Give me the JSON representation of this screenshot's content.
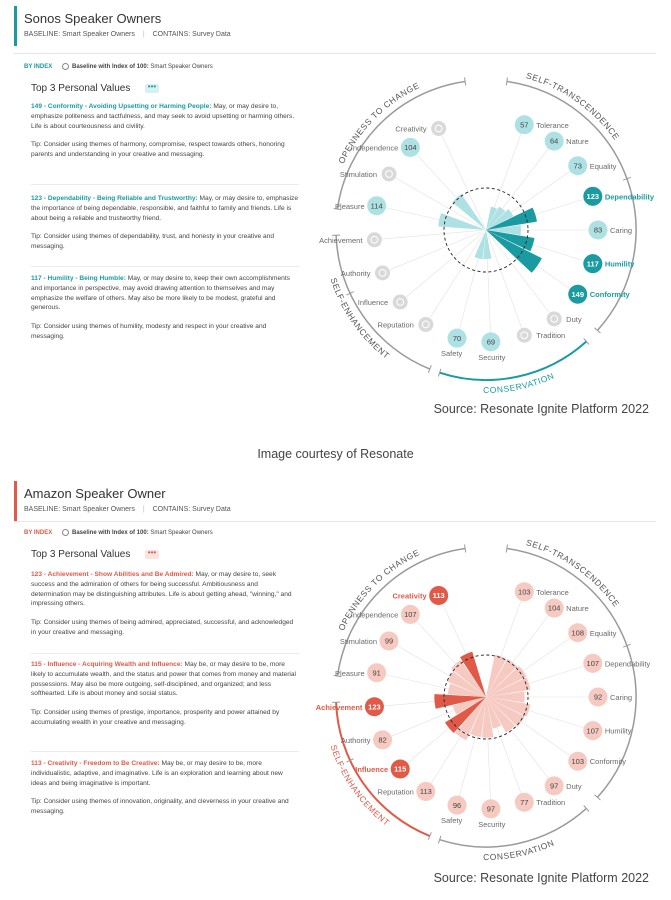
{
  "panels": [
    {
      "title": "Sonos Speaker Owners",
      "baseline_meta": "BASELINE: Smart Speaker Owners",
      "contains_meta": "CONTAINS: Survey Data",
      "by_index": "BY INDEX",
      "baseline_toggle_bold": "Baseline with Index of 100:",
      "baseline_toggle_text": "Smart Speaker Owners",
      "top3_title": "Top 3 Personal Values",
      "more_glyph": "•••",
      "accent": "#1a9ba1",
      "light": "#aee1e3",
      "values": [
        {
          "heading": "149 - Conformity - Avoiding Upsetting or Harming People:",
          "body": " May, or may desire to, emphasize politeness and tactfulness, and may seek to avoid upsetting or harming others. Life is about courteousness and civility.",
          "tip": "Tip: Consider using themes of harmony, compromise, respect towards others, honoring parents and understanding in your creative and messaging."
        },
        {
          "heading": "123 - Dependability - Being Reliable and Trustworthy:",
          "body": " May, or may desire to, emphasize the importance of being dependable, responsible, and faithful to family and friends. Life is about being a reliable and trustworthy friend.",
          "tip": "Tip: Consider using themes of dependability, trust, and honesty in your creative and messaging."
        },
        {
          "heading": "117 - Humility - Being Humble:",
          "body": " May, or may desire to, keep their own accomplishments and importance in perspective, may avoid drawing attention to themselves and may emphasize the welfare of others. May also be more likely to be modest, grateful and generous.",
          "tip": "Tip: Consider using themes of humility, modesty and respect in your creative and messaging."
        }
      ],
      "source": "Source: Resonate Ignite Platform 2022",
      "chart_data": {
        "type": "radial-bar",
        "baseline": 100,
        "quadrants": [
          "OPENNESS TO CHANGE",
          "SELF-TRANSCENDENCE",
          "CONSERVATION",
          "SELF-ENHANCEMENT"
        ],
        "highlighted_quadrant": "CONSERVATION",
        "items": [
          {
            "name": "Tolerance",
            "value": 57,
            "shown": true
          },
          {
            "name": "Nature",
            "value": 64,
            "shown": true
          },
          {
            "name": "Equality",
            "value": 73,
            "shown": true
          },
          {
            "name": "Dependability",
            "value": 123,
            "shown": true,
            "top": true
          },
          {
            "name": "Caring",
            "value": 83,
            "shown": true
          },
          {
            "name": "Humility",
            "value": 117,
            "shown": true,
            "top": true
          },
          {
            "name": "Conformity",
            "value": 149,
            "shown": true,
            "top": true
          },
          {
            "name": "Duty",
            "value": 35,
            "shown": false
          },
          {
            "name": "Tradition",
            "value": 35,
            "shown": false
          },
          {
            "name": "Security",
            "value": 69,
            "shown": true
          },
          {
            "name": "Safety",
            "value": 70,
            "shown": true
          },
          {
            "name": "Reputation",
            "value": 35,
            "shown": false
          },
          {
            "name": "Influence",
            "value": 35,
            "shown": false
          },
          {
            "name": "Authority",
            "value": 35,
            "shown": false
          },
          {
            "name": "Achievement",
            "value": 35,
            "shown": false
          },
          {
            "name": "Pleasure",
            "value": 114,
            "shown": true
          },
          {
            "name": "Stimulation",
            "value": 35,
            "shown": false
          },
          {
            "name": "Independence",
            "value": 104,
            "shown": true
          },
          {
            "name": "Creativity",
            "value": 35,
            "shown": false
          }
        ]
      }
    },
    {
      "title": "Amazon Speaker Owner",
      "baseline_meta": "BASELINE: Smart Speaker Owners",
      "contains_meta": "CONTAINS: Survey Data",
      "by_index": "BY INDEX",
      "baseline_toggle_bold": "Baseline with Index of 100:",
      "baseline_toggle_text": "Smart Speaker Owners",
      "top3_title": "Top 3 Personal Values",
      "more_glyph": "•••",
      "accent": "#e05a47",
      "light": "#f6c9c1",
      "values": [
        {
          "heading": "123 - Achievement - Show Abilities and Be Admired:",
          "body": " May, or may desire to, seek success and the admiration of others for being successful. Ambitiousness and determination may be distinguishing attributes. Life is about getting ahead, \"winning,\" and impressing others.",
          "tip": "Tip: Consider using themes of being admired, appreciated, successful, and acknowledged in your creative and messaging."
        },
        {
          "heading": "115 - Influence - Acquiring Wealth and Influence:",
          "body": " May be, or may desire to be, more likely to accumulate wealth, and the status and power that comes from money and material possessions. May also be more outgoing, self-disciplined, and organized; and less softhearted. Life is about money and social status.",
          "tip": "Tip: Consider using themes of prestige, importance, prosperity and power attained by accumulating wealth in your creative and messaging."
        },
        {
          "heading": "113 - Creativity - Freedom to Be Creative:",
          "body": " May be, or may desire to be, more individualistic, adaptive, and imaginative. Life is an exploration and learning about new ideas and being imaginative is important.",
          "tip": "Tip: Consider using themes of innovation, originality, and cleverness in your creative and messaging."
        }
      ],
      "source": "Source: Resonate Ignite Platform 2022",
      "chart_data": {
        "type": "radial-bar",
        "baseline": 100,
        "quadrants": [
          "OPENNESS TO CHANGE",
          "SELF-TRANSCENDENCE",
          "CONSERVATION",
          "SELF-ENHANCEMENT"
        ],
        "highlighted_quadrant": "SELF-ENHANCEMENT",
        "items": [
          {
            "name": "Tolerance",
            "value": 103,
            "shown": true
          },
          {
            "name": "Nature",
            "value": 104,
            "shown": true
          },
          {
            "name": "Equality",
            "value": 108,
            "shown": true
          },
          {
            "name": "Dependability",
            "value": 107,
            "shown": true
          },
          {
            "name": "Caring",
            "value": 92,
            "shown": true
          },
          {
            "name": "Humility",
            "value": 107,
            "shown": true
          },
          {
            "name": "Conformity",
            "value": 103,
            "shown": true
          },
          {
            "name": "Duty",
            "value": 97,
            "shown": true
          },
          {
            "name": "Tradition",
            "value": 77,
            "shown": true
          },
          {
            "name": "Security",
            "value": 97,
            "shown": true
          },
          {
            "name": "Safety",
            "value": 96,
            "shown": true
          },
          {
            "name": "Reputation",
            "value": 113,
            "shown": true
          },
          {
            "name": "Influence",
            "value": 115,
            "shown": true,
            "top": true
          },
          {
            "name": "Authority",
            "value": 82,
            "shown": true
          },
          {
            "name": "Achievement",
            "value": 123,
            "shown": true,
            "top": true
          },
          {
            "name": "Pleasure",
            "value": 91,
            "shown": true
          },
          {
            "name": "Stimulation",
            "value": 99,
            "shown": true
          },
          {
            "name": "Independence",
            "value": 107,
            "shown": true
          },
          {
            "name": "Creativity",
            "value": 113,
            "shown": true,
            "top": true
          }
        ]
      }
    }
  ],
  "courtesy": "Image courtesy of Resonate"
}
